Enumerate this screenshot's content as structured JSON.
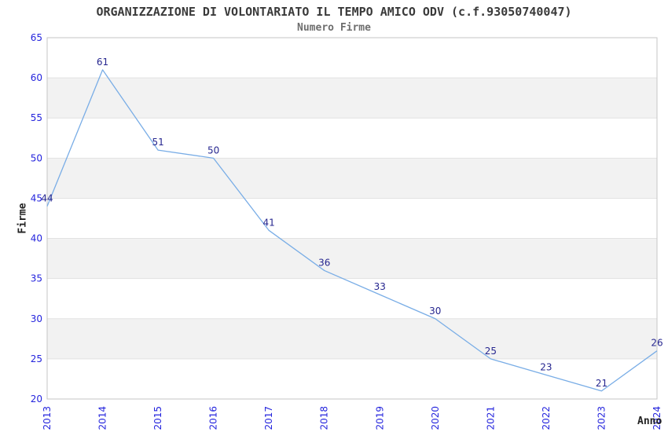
{
  "chart_data": {
    "type": "line",
    "title": "ORGANIZZAZIONE DI VOLONTARIATO IL TEMPO AMICO ODV (c.f.93050740047)",
    "subtitle": "Numero Firme",
    "xlabel": "Anno",
    "ylabel": "Firme",
    "categories": [
      "2013",
      "2014",
      "2015",
      "2016",
      "2017",
      "2018",
      "2019",
      "2020",
      "2021",
      "2022",
      "2023",
      "2024"
    ],
    "series": [
      {
        "name": "Numero Firme",
        "values": [
          44,
          61,
          51,
          50,
          41,
          36,
          33,
          30,
          25,
          23,
          21,
          26
        ]
      }
    ],
    "ylim": [
      20,
      65
    ],
    "y_ticks": [
      20,
      25,
      30,
      35,
      40,
      45,
      50,
      55,
      60,
      65
    ],
    "legend": "none",
    "grid": "alternating horizontal bands with gridline every 5 units",
    "data_labels_shown": true,
    "colors": {
      "line": "#79ade6",
      "data_label": "#26268f",
      "tick_label": "#2424dd",
      "band": "#f2f2f2",
      "gridline": "#e2e2e2",
      "plot_border": "#c6c6c6",
      "title": "#3a3a3a",
      "subtitle": "#6e6e6e",
      "axis_title": "#222222",
      "background": "#ffffff"
    }
  }
}
